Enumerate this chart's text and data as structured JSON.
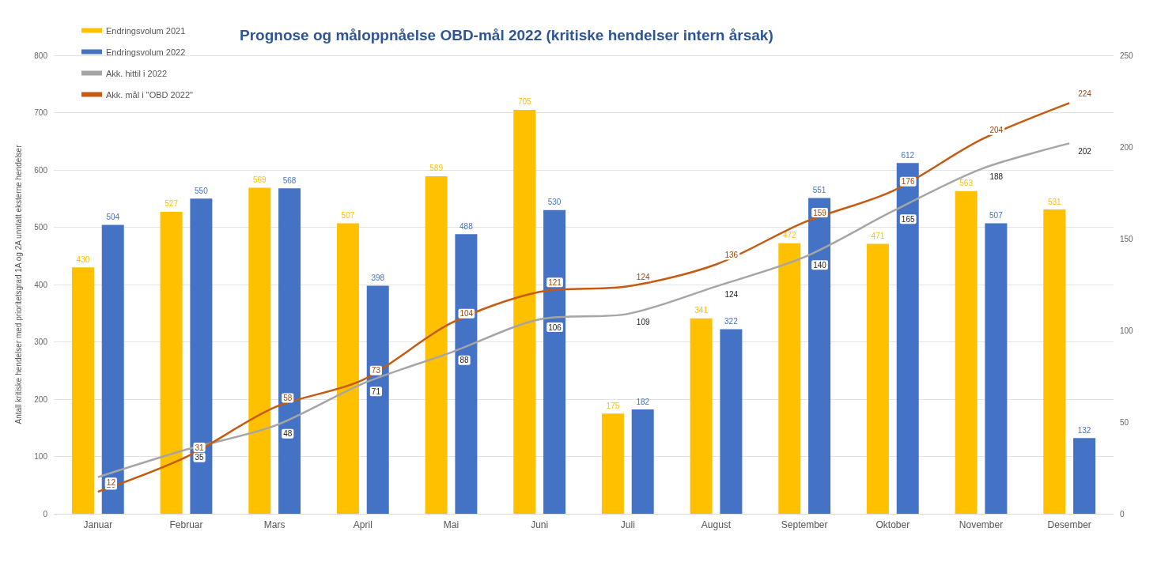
{
  "chart_data": {
    "type": "bar",
    "title": "Prognose og måloppnåelse OBD-mål 2022 (kritiske hendelser intern årsak)",
    "ylabel": "Antall kritiske hendelser med prioritetsgrad 1A og 2A unntatt eksterne hendelser",
    "categories": [
      "Januar",
      "Februar",
      "Mars",
      "April",
      "Mai",
      "Juni",
      "Juli",
      "August",
      "September",
      "Oktober",
      "November",
      "Desember"
    ],
    "series": [
      {
        "name": "Endringsvolum 2021",
        "color": "#ffc000",
        "values": [
          430,
          527,
          569,
          507,
          589,
          705,
          175,
          341,
          472,
          471,
          563,
          531
        ]
      },
      {
        "name": "Endringsvolum 2022",
        "color": "#4472c4",
        "values": [
          504,
          550,
          568,
          398,
          488,
          530,
          182,
          322,
          551,
          612,
          507,
          132
        ]
      },
      {
        "name": "Akk. hittil i 2022",
        "type": "line",
        "axis": "y2",
        "color": "#a5a5a5",
        "values": [
          20,
          35,
          48,
          71,
          88,
          106,
          109,
          124,
          140,
          165,
          188,
          202
        ]
      },
      {
        "name": "Akk. mål i \"OBD 2022\"",
        "type": "line",
        "axis": "y2",
        "color": "#c55a11",
        "values": [
          12,
          31,
          58,
          73,
          104,
          121,
          124,
          136,
          159,
          176,
          204,
          224
        ]
      }
    ],
    "ylim": [
      0,
      800
    ],
    "yticks": [
      0,
      100,
      200,
      300,
      400,
      500,
      600,
      700,
      800
    ],
    "y2lim": [
      0,
      250
    ],
    "y2ticks": [
      0,
      50,
      100,
      150,
      200,
      250
    ],
    "grid": "y",
    "legend": "top left",
    "data_labels": true,
    "marker": "none"
  }
}
